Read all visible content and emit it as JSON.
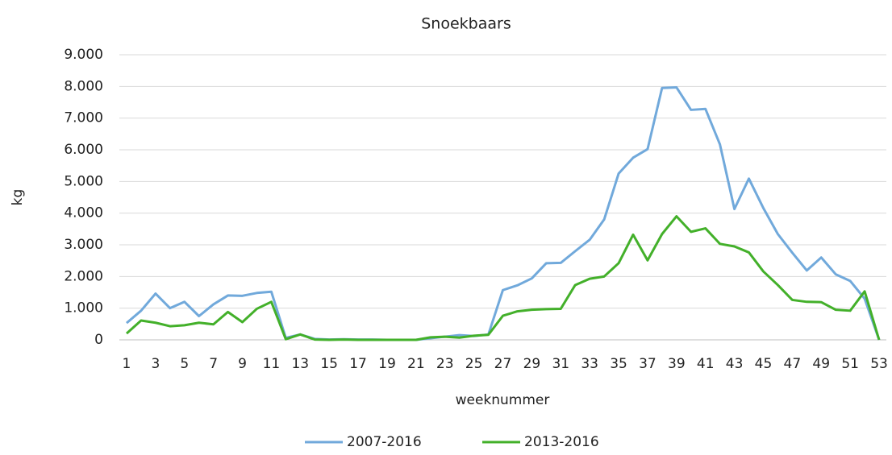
{
  "chart_data": {
    "type": "line",
    "title": "Snoekbaars",
    "x_label": "weeknummer",
    "y_label": "kg",
    "x": [
      1,
      2,
      3,
      4,
      5,
      6,
      7,
      8,
      9,
      10,
      11,
      12,
      13,
      14,
      15,
      16,
      17,
      18,
      19,
      20,
      21,
      22,
      23,
      24,
      25,
      26,
      27,
      28,
      29,
      30,
      31,
      32,
      33,
      34,
      35,
      36,
      37,
      38,
      39,
      40,
      41,
      42,
      43,
      44,
      45,
      46,
      47,
      48,
      49,
      50,
      51,
      52,
      53
    ],
    "xlim": [
      0.5,
      53.5
    ],
    "xticks": [
      1,
      3,
      5,
      7,
      9,
      11,
      13,
      15,
      17,
      19,
      21,
      23,
      25,
      27,
      29,
      31,
      33,
      35,
      37,
      39,
      41,
      43,
      45,
      47,
      49,
      51,
      53
    ],
    "ylim": [
      0,
      9000
    ],
    "yticks": [
      0,
      {
        "value": 1000,
        "label": "1.000"
      },
      {
        "value": 2000,
        "label": "2.000"
      },
      {
        "value": 3000,
        "label": "3.000"
      },
      {
        "value": 4000,
        "label": "4.000"
      },
      {
        "value": 5000,
        "label": "5.000"
      },
      {
        "value": 6000,
        "label": "6.000"
      },
      {
        "value": 7000,
        "label": "7.000"
      },
      {
        "value": 8000,
        "label": "8.000"
      },
      {
        "value": 9000,
        "label": "9.000"
      }
    ],
    "grid": true,
    "legend": "bottom",
    "series": [
      {
        "name": "2007-2016",
        "color": "#71a9db",
        "values": [
          530,
          920,
          1460,
          1000,
          1200,
          750,
          1120,
          1400,
          1390,
          1480,
          1520,
          60,
          170,
          30,
          10,
          20,
          10,
          10,
          0,
          0,
          0,
          50,
          100,
          150,
          120,
          170,
          1570,
          1720,
          1940,
          2420,
          2430,
          2800,
          3160,
          3800,
          5250,
          5750,
          6020,
          7950,
          7970,
          7260,
          7290,
          6170,
          4130,
          5090,
          4160,
          3340,
          2750,
          2190,
          2600,
          2070,
          1860,
          1300,
          0
        ]
      },
      {
        "name": "2013-2016",
        "color": "#43b02a",
        "values": [
          200,
          610,
          540,
          430,
          460,
          540,
          490,
          880,
          560,
          980,
          1200,
          20,
          170,
          10,
          0,
          10,
          0,
          0,
          0,
          0,
          0,
          80,
          100,
          70,
          130,
          160,
          760,
          900,
          950,
          970,
          980,
          1730,
          1930,
          2000,
          2420,
          3320,
          2510,
          3340,
          3900,
          3410,
          3520,
          3030,
          2950,
          2760,
          2160,
          1730,
          1260,
          1200,
          1190,
          950,
          920,
          1530,
          0
        ]
      }
    ]
  }
}
